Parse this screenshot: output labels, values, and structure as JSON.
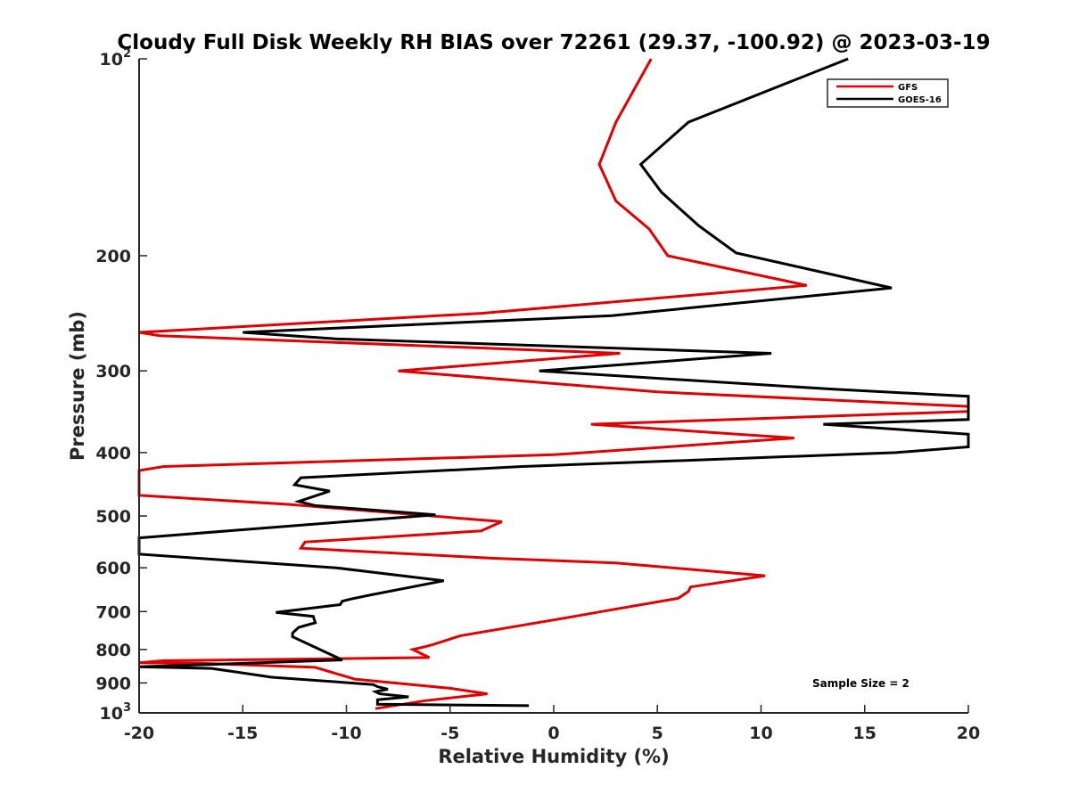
{
  "chart_data": {
    "type": "line",
    "title": "Cloudy Full Disk Weekly RH BIAS over 72261 (29.37, -100.92) @ 2023-03-19",
    "xlabel": "Relative Humidity (%)",
    "ylabel": "Pressure (mb)",
    "xlim": [
      -20,
      20
    ],
    "ylim": [
      100,
      1000
    ],
    "y_scale": "log",
    "y_reversed": true,
    "x_ticks": [
      -20,
      -15,
      -10,
      -5,
      0,
      5,
      10,
      15,
      20
    ],
    "x_tick_labels": [
      "-20",
      "-15",
      "-10",
      "-5",
      "0",
      "5",
      "10",
      "15",
      "20"
    ],
    "y_ticks": [
      100,
      200,
      300,
      400,
      500,
      600,
      700,
      800,
      900,
      1000
    ],
    "y_tick_labels": [
      {
        "base": "10",
        "exp": "2"
      },
      {
        "base": "200",
        "exp": ""
      },
      {
        "base": "300",
        "exp": ""
      },
      {
        "base": "400",
        "exp": ""
      },
      {
        "base": "500",
        "exp": ""
      },
      {
        "base": "600",
        "exp": ""
      },
      {
        "base": "700",
        "exp": ""
      },
      {
        "base": "800",
        "exp": ""
      },
      {
        "base": "900",
        "exp": ""
      },
      {
        "base": "10",
        "exp": "3"
      }
    ],
    "grid": false,
    "legend_position": "top-right",
    "annotation": "Sample Size = 2",
    "series": [
      {
        "name": "GFS",
        "color": "#e00000",
        "points": [
          [
            4.7,
            100
          ],
          [
            3.0,
            125
          ],
          [
            2.2,
            145
          ],
          [
            3.0,
            165
          ],
          [
            4.6,
            182
          ],
          [
            5.5,
            200
          ],
          [
            12.2,
            222
          ],
          [
            -3.5,
            245
          ],
          [
            -20,
            262
          ],
          [
            -19.0,
            265
          ],
          [
            3.2,
            282
          ],
          [
            -7.5,
            300
          ],
          [
            5.0,
            323
          ],
          [
            20,
            340
          ],
          [
            20,
            346
          ],
          [
            1.8,
            362
          ],
          [
            11.6,
            380
          ],
          [
            0.0,
            403
          ],
          [
            -18.8,
            420
          ],
          [
            -20,
            426
          ],
          [
            -20,
            465
          ],
          [
            -12.8,
            480
          ],
          [
            -2.5,
            510
          ],
          [
            -3.5,
            527
          ],
          [
            -12.0,
            548
          ],
          [
            -12.2,
            560
          ],
          [
            -3.0,
            580
          ],
          [
            3.0,
            590
          ],
          [
            10.2,
            617
          ],
          [
            6.6,
            642
          ],
          [
            6.5,
            652
          ],
          [
            6.0,
            668
          ],
          [
            2.3,
            700
          ],
          [
            1.0,
            712
          ],
          [
            -4.5,
            762
          ],
          [
            -5.8,
            786
          ],
          [
            -6.2,
            792
          ],
          [
            -6.8,
            800
          ],
          [
            -6.0,
            823
          ],
          [
            -18.8,
            832
          ],
          [
            -20,
            838
          ],
          [
            -17.0,
            840
          ],
          [
            -11.5,
            852
          ],
          [
            -9.6,
            888
          ],
          [
            -5.0,
            917
          ],
          [
            -3.2,
            935
          ],
          [
            -6.2,
            958
          ],
          [
            -8.6,
            985
          ],
          [
            -8.6,
            985
          ],
          [
            -8.6,
            985
          ]
        ]
      },
      {
        "name": "GOES-16",
        "color": "#000000",
        "points": [
          [
            14.2,
            100
          ],
          [
            6.5,
            125
          ],
          [
            4.2,
            145
          ],
          [
            5.2,
            160
          ],
          [
            7.0,
            180
          ],
          [
            8.8,
            198
          ],
          [
            16.3,
            224
          ],
          [
            2.8,
            247
          ],
          [
            -15.0,
            262
          ],
          [
            -10.5,
            268
          ],
          [
            10.5,
            282
          ],
          [
            -0.7,
            300
          ],
          [
            13.5,
            320
          ],
          [
            20,
            328
          ],
          [
            20,
            356
          ],
          [
            13.0,
            362
          ],
          [
            20,
            375
          ],
          [
            20,
            392
          ],
          [
            16.5,
            400
          ],
          [
            -1.5,
            420
          ],
          [
            -12.2,
            437
          ],
          [
            -12.5,
            448
          ],
          [
            -10.8,
            458
          ],
          [
            -12.3,
            475
          ],
          [
            -11.5,
            482
          ],
          [
            -5.7,
            498
          ],
          [
            -10.7,
            512
          ],
          [
            -20,
            540
          ],
          [
            -20,
            572
          ],
          [
            -10.5,
            600
          ],
          [
            -5.3,
            628
          ],
          [
            -8.8,
            660
          ],
          [
            -9.8,
            670
          ],
          [
            -10.2,
            675
          ],
          [
            -10.3,
            683
          ],
          [
            -13.4,
            702
          ],
          [
            -11.6,
            712
          ],
          [
            -11.5,
            728
          ],
          [
            -12.3,
            740
          ],
          [
            -12.6,
            755
          ],
          [
            -12.6,
            765
          ],
          [
            -10.2,
            830
          ],
          [
            -15.0,
            840
          ],
          [
            -20,
            850
          ],
          [
            -16.5,
            855
          ],
          [
            -13.6,
            882
          ],
          [
            -8.7,
            905
          ],
          [
            -8.5,
            912
          ],
          [
            -8.0,
            920
          ],
          [
            -8.6,
            928
          ],
          [
            -8.4,
            935
          ],
          [
            -7.0,
            945
          ],
          [
            -8.5,
            955
          ],
          [
            -8.5,
            970
          ],
          [
            -1.2,
            975
          ]
        ]
      }
    ]
  }
}
